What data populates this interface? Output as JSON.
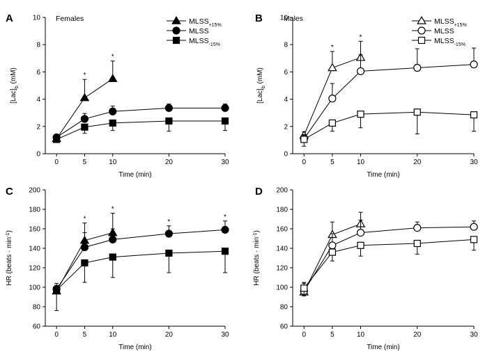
{
  "colors": {
    "ink": "#000000",
    "paper": "#ffffff"
  },
  "chart_data": [
    {
      "panel": "A",
      "title": "Females",
      "type": "line",
      "xlabel": "Time (min)",
      "ylabel": "[Lac]b (mM)",
      "xticks": [
        0,
        5,
        10,
        20,
        30
      ],
      "yticks": [
        0,
        2,
        4,
        6,
        8,
        10
      ],
      "xlim": [
        -2,
        30
      ],
      "ylim": [
        0,
        10
      ],
      "legend_position": "top-right",
      "grid": false,
      "series": [
        {
          "name": "MLSS+15%",
          "name_main": "MLSS",
          "name_sub": "+15%",
          "marker": "triangle",
          "fill": "filled",
          "x": [
            0,
            5,
            10
          ],
          "y": [
            1.1,
            4.1,
            5.5
          ],
          "err": [
            0.2,
            1.35,
            1.3
          ],
          "star": [
            false,
            true,
            true
          ]
        },
        {
          "name": "MLSS",
          "name_main": "MLSS",
          "name_sub": "",
          "marker": "circle",
          "fill": "filled",
          "x": [
            0,
            5,
            10,
            20,
            30
          ],
          "y": [
            1.2,
            2.55,
            3.1,
            3.35,
            3.35
          ],
          "err": [
            0.15,
            0.4,
            0.4,
            0.3,
            0.3
          ],
          "star": [
            false,
            false,
            false,
            false,
            false
          ]
        },
        {
          "name": "MLSS-15%",
          "name_main": "MLSS",
          "name_sub": "-15%",
          "marker": "square",
          "fill": "filled",
          "x": [
            0,
            5,
            10,
            20,
            30
          ],
          "y": [
            1.05,
            1.95,
            2.25,
            2.4,
            2.4
          ],
          "err": [
            0.2,
            0.45,
            0.55,
            0.75,
            0.7
          ],
          "star": [
            false,
            false,
            false,
            false,
            false
          ]
        }
      ]
    },
    {
      "panel": "B",
      "title": "Males",
      "type": "line",
      "xlabel": "Time (min)",
      "ylabel": "[Lac]b (mM)",
      "xticks": [
        0,
        5,
        10,
        20,
        30
      ],
      "yticks": [
        0,
        2,
        4,
        6,
        8,
        10
      ],
      "xlim": [
        -2,
        30
      ],
      "ylim": [
        0,
        10
      ],
      "legend_position": "top-right",
      "grid": false,
      "series": [
        {
          "name": "MLSS+15%",
          "name_main": "MLSS",
          "name_sub": "+15%",
          "marker": "triangle",
          "fill": "open",
          "x": [
            0,
            5,
            10
          ],
          "y": [
            1.35,
            6.3,
            7.05
          ],
          "err": [
            0.25,
            1.2,
            1.2
          ],
          "star": [
            false,
            true,
            true
          ]
        },
        {
          "name": "MLSS",
          "name_main": "MLSS",
          "name_sub": "",
          "marker": "circle",
          "fill": "open",
          "x": [
            0,
            5,
            10,
            20,
            30
          ],
          "y": [
            1.1,
            4.05,
            6.05,
            6.3,
            6.55
          ],
          "err": [
            0.3,
            1.1,
            1.2,
            1.4,
            1.2
          ],
          "star": [
            false,
            false,
            false,
            false,
            false
          ]
        },
        {
          "name": "MLSS-15%",
          "name_main": "MLSS",
          "name_sub": "-15%",
          "marker": "square",
          "fill": "open",
          "x": [
            0,
            5,
            10,
            20,
            30
          ],
          "y": [
            1.05,
            2.25,
            2.9,
            3.05,
            2.85
          ],
          "err": [
            0.5,
            0.6,
            1.0,
            1.6,
            1.2
          ],
          "star": [
            false,
            false,
            false,
            false,
            false
          ]
        }
      ]
    },
    {
      "panel": "C",
      "title": "",
      "type": "line",
      "xlabel": "Time (min)",
      "ylabel": "HR (beats · min-1)",
      "xticks": [
        0,
        5,
        10,
        20,
        30
      ],
      "yticks": [
        60,
        80,
        100,
        120,
        140,
        160,
        180,
        200
      ],
      "xlim": [
        -2,
        30
      ],
      "ylim": [
        60,
        200
      ],
      "grid": false,
      "series": [
        {
          "name": "MLSS+15%",
          "marker": "triangle",
          "fill": "filled",
          "x": [
            0,
            5,
            10
          ],
          "y": [
            96,
            148,
            156
          ],
          "err": [
            6,
            18,
            20
          ],
          "star": [
            false,
            true,
            true
          ]
        },
        {
          "name": "MLSS",
          "marker": "circle",
          "fill": "filled",
          "x": [
            0,
            5,
            10,
            20,
            30
          ],
          "y": [
            98,
            141,
            149,
            155,
            159
          ],
          "err": [
            6,
            15,
            11,
            8,
            9
          ],
          "star": [
            false,
            false,
            false,
            true,
            true
          ]
        },
        {
          "name": "MLSS-15%",
          "marker": "square",
          "fill": "filled",
          "x": [
            0,
            5,
            10,
            20,
            30
          ],
          "y": [
            97,
            125,
            131,
            135,
            137
          ],
          "err": [
            21,
            20,
            21,
            20,
            22
          ],
          "star": [
            false,
            false,
            false,
            false,
            false
          ]
        }
      ]
    },
    {
      "panel": "D",
      "title": "",
      "type": "line",
      "xlabel": "Time (min)",
      "ylabel": "HR (beats · min-1)",
      "xticks": [
        0,
        5,
        10,
        20,
        30
      ],
      "yticks": [
        60,
        80,
        100,
        120,
        140,
        160,
        180,
        200
      ],
      "xlim": [
        -2,
        30
      ],
      "ylim": [
        60,
        200
      ],
      "grid": false,
      "series": [
        {
          "name": "MLSS+15%",
          "marker": "triangle",
          "fill": "open",
          "x": [
            0,
            5,
            10
          ],
          "y": [
            95,
            154,
            165
          ],
          "err": [
            9,
            13,
            12
          ],
          "star": [
            false,
            false,
            false
          ]
        },
        {
          "name": "MLSS",
          "marker": "circle",
          "fill": "open",
          "x": [
            0,
            5,
            10,
            20,
            30
          ],
          "y": [
            96,
            143,
            156,
            161,
            162
          ],
          "err": [
            9,
            12,
            13,
            6,
            6
          ],
          "star": [
            false,
            false,
            false,
            false,
            false
          ]
        },
        {
          "name": "MLSS-15%",
          "marker": "square",
          "fill": "open",
          "x": [
            0,
            5,
            10,
            20,
            30
          ],
          "y": [
            99,
            136,
            143,
            145,
            149
          ],
          "err": [
            8,
            9,
            11,
            11,
            11
          ],
          "star": [
            false,
            false,
            false,
            false,
            false
          ]
        }
      ]
    }
  ]
}
